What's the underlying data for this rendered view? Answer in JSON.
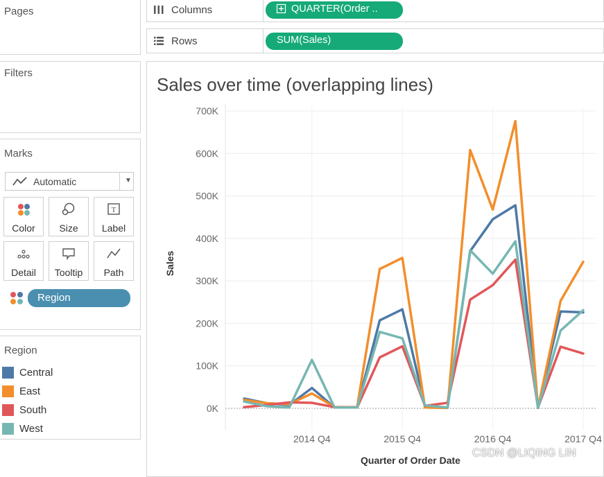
{
  "shelves": {
    "pages": {
      "title": "Pages"
    },
    "filters": {
      "title": "Filters"
    },
    "columns": {
      "label": "Columns",
      "pill": "QUARTER(Order ..",
      "pill_color": "#15aa78"
    },
    "rows": {
      "label": "Rows",
      "pill": "SUM(Sales)",
      "pill_color": "#15aa78"
    }
  },
  "marks": {
    "title": "Marks",
    "mark_type": "Automatic",
    "buttons": [
      {
        "label": "Color",
        "icon": "color-dots-icon"
      },
      {
        "label": "Size",
        "icon": "size-icon"
      },
      {
        "label": "Label",
        "icon": "label-icon"
      },
      {
        "label": "Detail",
        "icon": "detail-icon"
      },
      {
        "label": "Tooltip",
        "icon": "tooltip-icon"
      },
      {
        "label": "Path",
        "icon": "path-icon"
      }
    ],
    "color_field": "Region"
  },
  "legend": {
    "title": "Region",
    "items": [
      {
        "label": "Central",
        "color": "#4e79a7"
      },
      {
        "label": "East",
        "color": "#f28e2b"
      },
      {
        "label": "South",
        "color": "#e15759"
      },
      {
        "label": "West",
        "color": "#76b7b2"
      }
    ]
  },
  "chart_data": {
    "type": "line",
    "title": "Sales over time (overlapping lines)",
    "xlabel": "Quarter of Order Date",
    "ylabel": "Sales",
    "ylim": [
      0,
      700000
    ],
    "yticks": [
      "0K",
      "100K",
      "200K",
      "300K",
      "400K",
      "500K",
      "600K",
      "700K"
    ],
    "xticks": [
      "2014 Q4",
      "2015 Q4",
      "2016 Q4",
      "2017 Q4"
    ],
    "categories": [
      "2014 Q1",
      "2014 Q2",
      "2014 Q3",
      "2014 Q4",
      "2015 Q1",
      "2015 Q2",
      "2015 Q3",
      "2015 Q4",
      "2016 Q1",
      "2016 Q2",
      "2016 Q3",
      "2016 Q4",
      "2017 Q1",
      "2017 Q2",
      "2017 Q3",
      "2017 Q4"
    ],
    "series": [
      {
        "name": "Central",
        "color": "#4e79a7",
        "values": [
          23000,
          12000,
          8000,
          48000,
          2000,
          2000,
          207000,
          233000,
          6000,
          1000,
          370000,
          445000,
          478000,
          2000,
          228000,
          226000
        ]
      },
      {
        "name": "East",
        "color": "#f28e2b",
        "values": [
          20000,
          12000,
          10000,
          35000,
          3000,
          3000,
          328000,
          354000,
          2000,
          1000,
          608000,
          468000,
          676000,
          1000,
          253000,
          345000
        ]
      },
      {
        "name": "South",
        "color": "#e15759",
        "values": [
          3000,
          8000,
          14000,
          13000,
          3000,
          2000,
          120000,
          146000,
          6000,
          13000,
          256000,
          290000,
          350000,
          2000,
          145000,
          129000
        ]
      },
      {
        "name": "West",
        "color": "#76b7b2",
        "values": [
          16000,
          5000,
          2000,
          114000,
          2000,
          2000,
          180000,
          165000,
          7000,
          2000,
          372000,
          317000,
          393000,
          1000,
          183000,
          231000
        ]
      }
    ]
  },
  "watermark": "CSDN @LIQING LIN"
}
